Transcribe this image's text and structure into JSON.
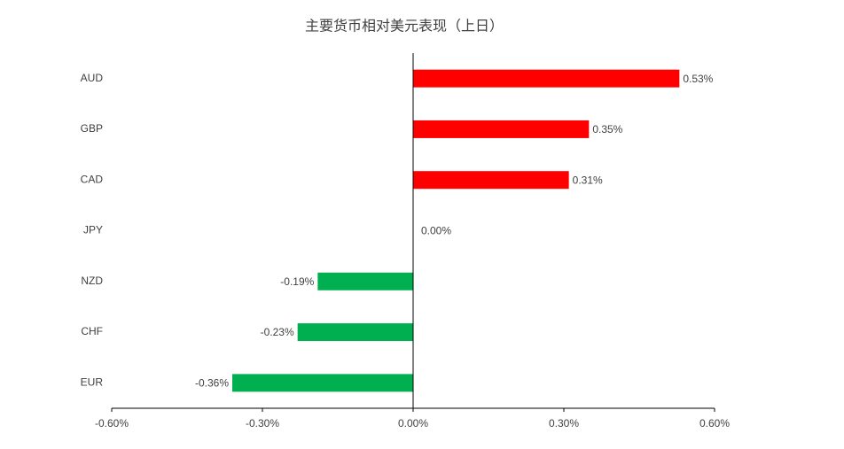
{
  "chart_data": {
    "type": "bar",
    "orientation": "horizontal",
    "title": "主要货币相对美元表现（上日）",
    "categories": [
      "AUD",
      "GBP",
      "CAD",
      "JPY",
      "NZD",
      "CHF",
      "EUR"
    ],
    "values": [
      0.53,
      0.35,
      0.31,
      0.0,
      -0.19,
      -0.23,
      -0.36
    ],
    "value_labels": [
      "0.53%",
      "0.35%",
      "0.31%",
      "0.00%",
      "-0.19%",
      "-0.23%",
      "-0.36%"
    ],
    "positive_color": "#ff0000",
    "negative_color": "#00b050",
    "xlim": [
      -0.6,
      0.6
    ],
    "xticks": [
      {
        "value": -0.6,
        "label": "-0.60%"
      },
      {
        "value": -0.3,
        "label": "-0.30%"
      },
      {
        "value": 0,
        "label": "0.00%"
      },
      {
        "value": 0.3,
        "label": "0.30%"
      },
      {
        "value": 0.6,
        "label": "0.60%"
      }
    ],
    "grid": false
  }
}
